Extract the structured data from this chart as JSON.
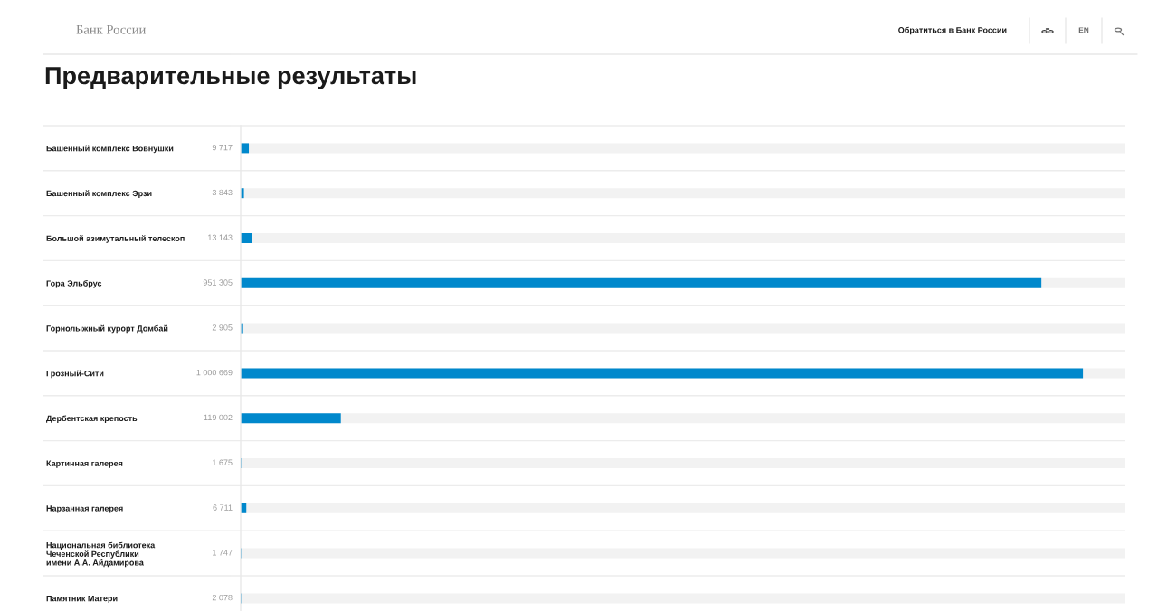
{
  "chart_data": {
    "type": "bar",
    "orientation": "horizontal",
    "title": "Предварительные результаты",
    "categories": [
      "Башенный комплекс Вовнушки",
      "Башенный комплекс Эрзи",
      "Большой азимутальный телескоп",
      "Гора Эльбрус",
      "Горнолыжный курорт Домбай",
      "Грозный-Сити",
      "Дербентская крепость",
      "Картинная галерея",
      "Нарзанная галерея",
      "Национальная библиотека\nЧеченской Республики\nимени А.А. Айдамирова",
      "Памятник Матери"
    ],
    "values": [
      9717,
      3843,
      13143,
      951305,
      2905,
      1000669,
      119002,
      1675,
      6711,
      1747,
      2078
    ],
    "value_labels": [
      "9 717",
      "3 843",
      "13 143",
      "951 305",
      "2 905",
      "1 000 669",
      "119 002",
      "1 675",
      "6 711",
      "1 747",
      "2 078"
    ],
    "color": "#0088cc",
    "xlim": [
      0,
      1050000
    ],
    "tick_labels": "y",
    "grid": "y",
    "annotations": [
      "Банк России",
      "Обратиться в Банк России",
      "EN"
    ]
  }
}
